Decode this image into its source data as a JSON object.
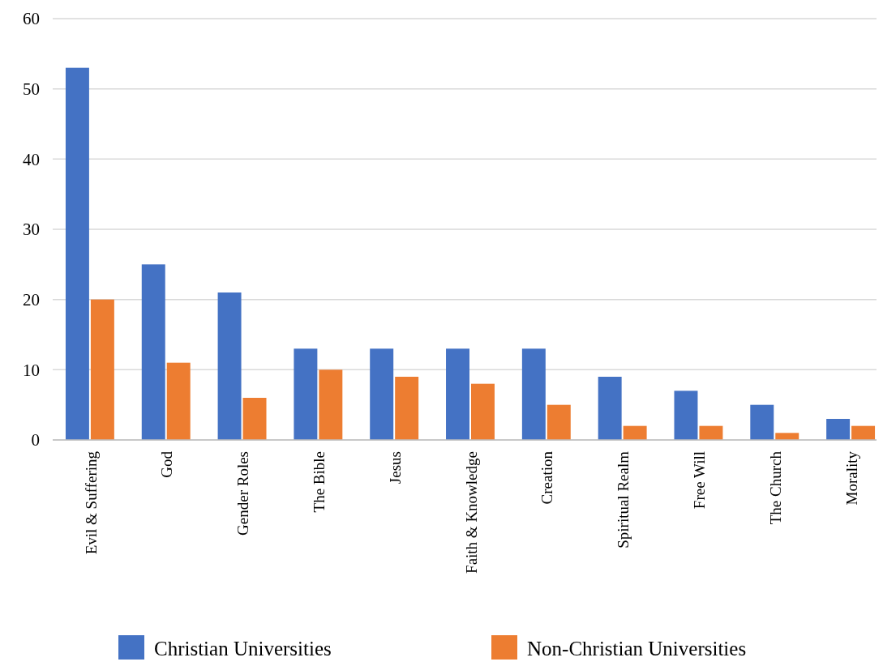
{
  "chart_data": {
    "type": "bar",
    "categories": [
      "Evil & Suffering",
      "God",
      "Gender Roles",
      "The Bible",
      "Jesus",
      "Faith & Knowledge",
      "Creation",
      "Spiritual Realm",
      "Free Will",
      "The Church",
      "Morality"
    ],
    "series": [
      {
        "name": "Christian Universities",
        "color": "#4472c4",
        "values": [
          53,
          25,
          21,
          13,
          13,
          13,
          13,
          9,
          7,
          5,
          3
        ]
      },
      {
        "name": "Non-Christian Universities",
        "color": "#ed7d31",
        "values": [
          20,
          11,
          6,
          10,
          9,
          8,
          5,
          2,
          2,
          1,
          2
        ]
      }
    ],
    "ylim": [
      0,
      60
    ],
    "yticks": [
      0,
      10,
      20,
      30,
      40,
      50,
      60
    ],
    "grid": "y",
    "legend": "bottom"
  }
}
